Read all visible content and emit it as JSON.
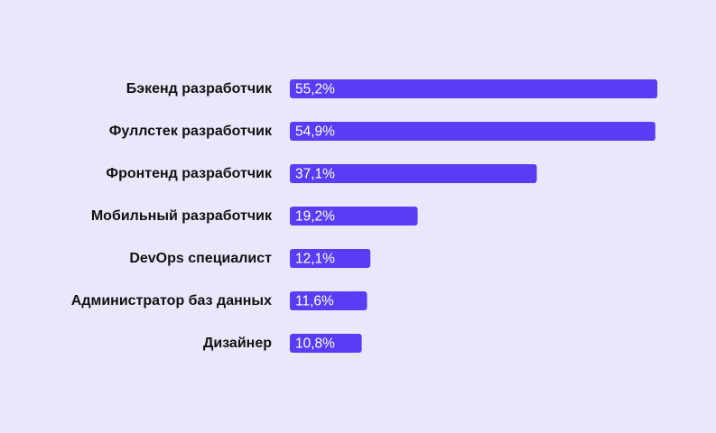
{
  "colors": {
    "background": "#ebe7fb",
    "bar": "#5b3cf5",
    "category_text": "#111111",
    "value_text": "#ffffff"
  },
  "chart_data": {
    "type": "bar",
    "orientation": "horizontal",
    "title": "",
    "xlabel": "",
    "ylabel": "",
    "grid": false,
    "xlim": [
      0,
      55.2
    ],
    "categories": [
      "Бэкенд разработчик",
      "Фуллстек разработчик",
      "Фронтенд разработчик",
      "Мобильный разработчик",
      "DevOps специалист",
      "Администратор баз данных",
      "Дизайнер"
    ],
    "values": [
      55.2,
      54.9,
      37.1,
      19.2,
      12.1,
      11.6,
      10.8
    ],
    "data_labels": [
      "55,2%",
      "54,9%",
      "37,1%",
      "19,2%",
      "12,1%",
      "11,6%",
      "10,8%"
    ]
  }
}
